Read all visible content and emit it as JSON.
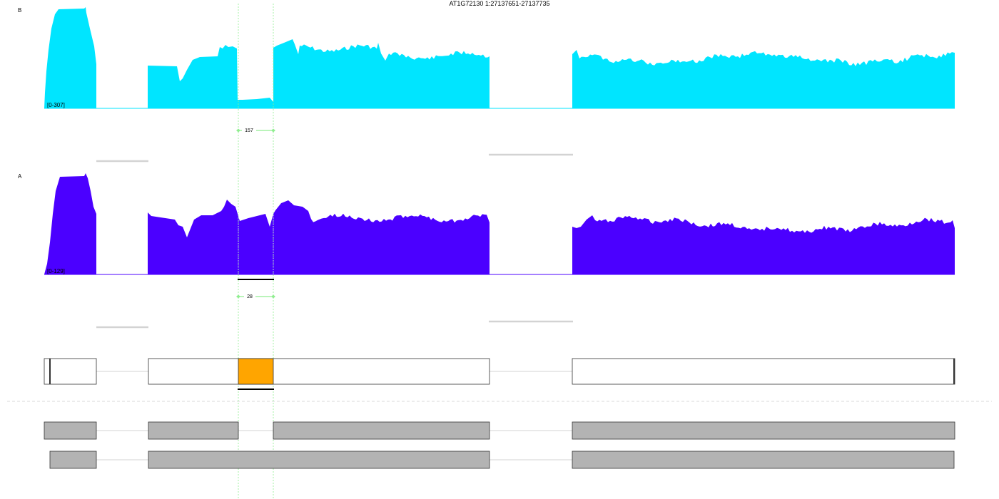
{
  "title": "AT1G72130 1:27137651-27137735",
  "colors": {
    "track_b": "#00e5ff",
    "track_a": "#4b00ff",
    "highlight_exon": "#ffa500",
    "exon_fill": "#b3b3b3",
    "guide_line": "#90ee90",
    "junction_bar": "#d3d3d3"
  },
  "tracks": [
    {
      "name": "B",
      "range_label": "[0-307]",
      "junction_count": "157"
    },
    {
      "name": "A",
      "range_label": "[0-129]",
      "junction_count": "28"
    }
  ]
}
